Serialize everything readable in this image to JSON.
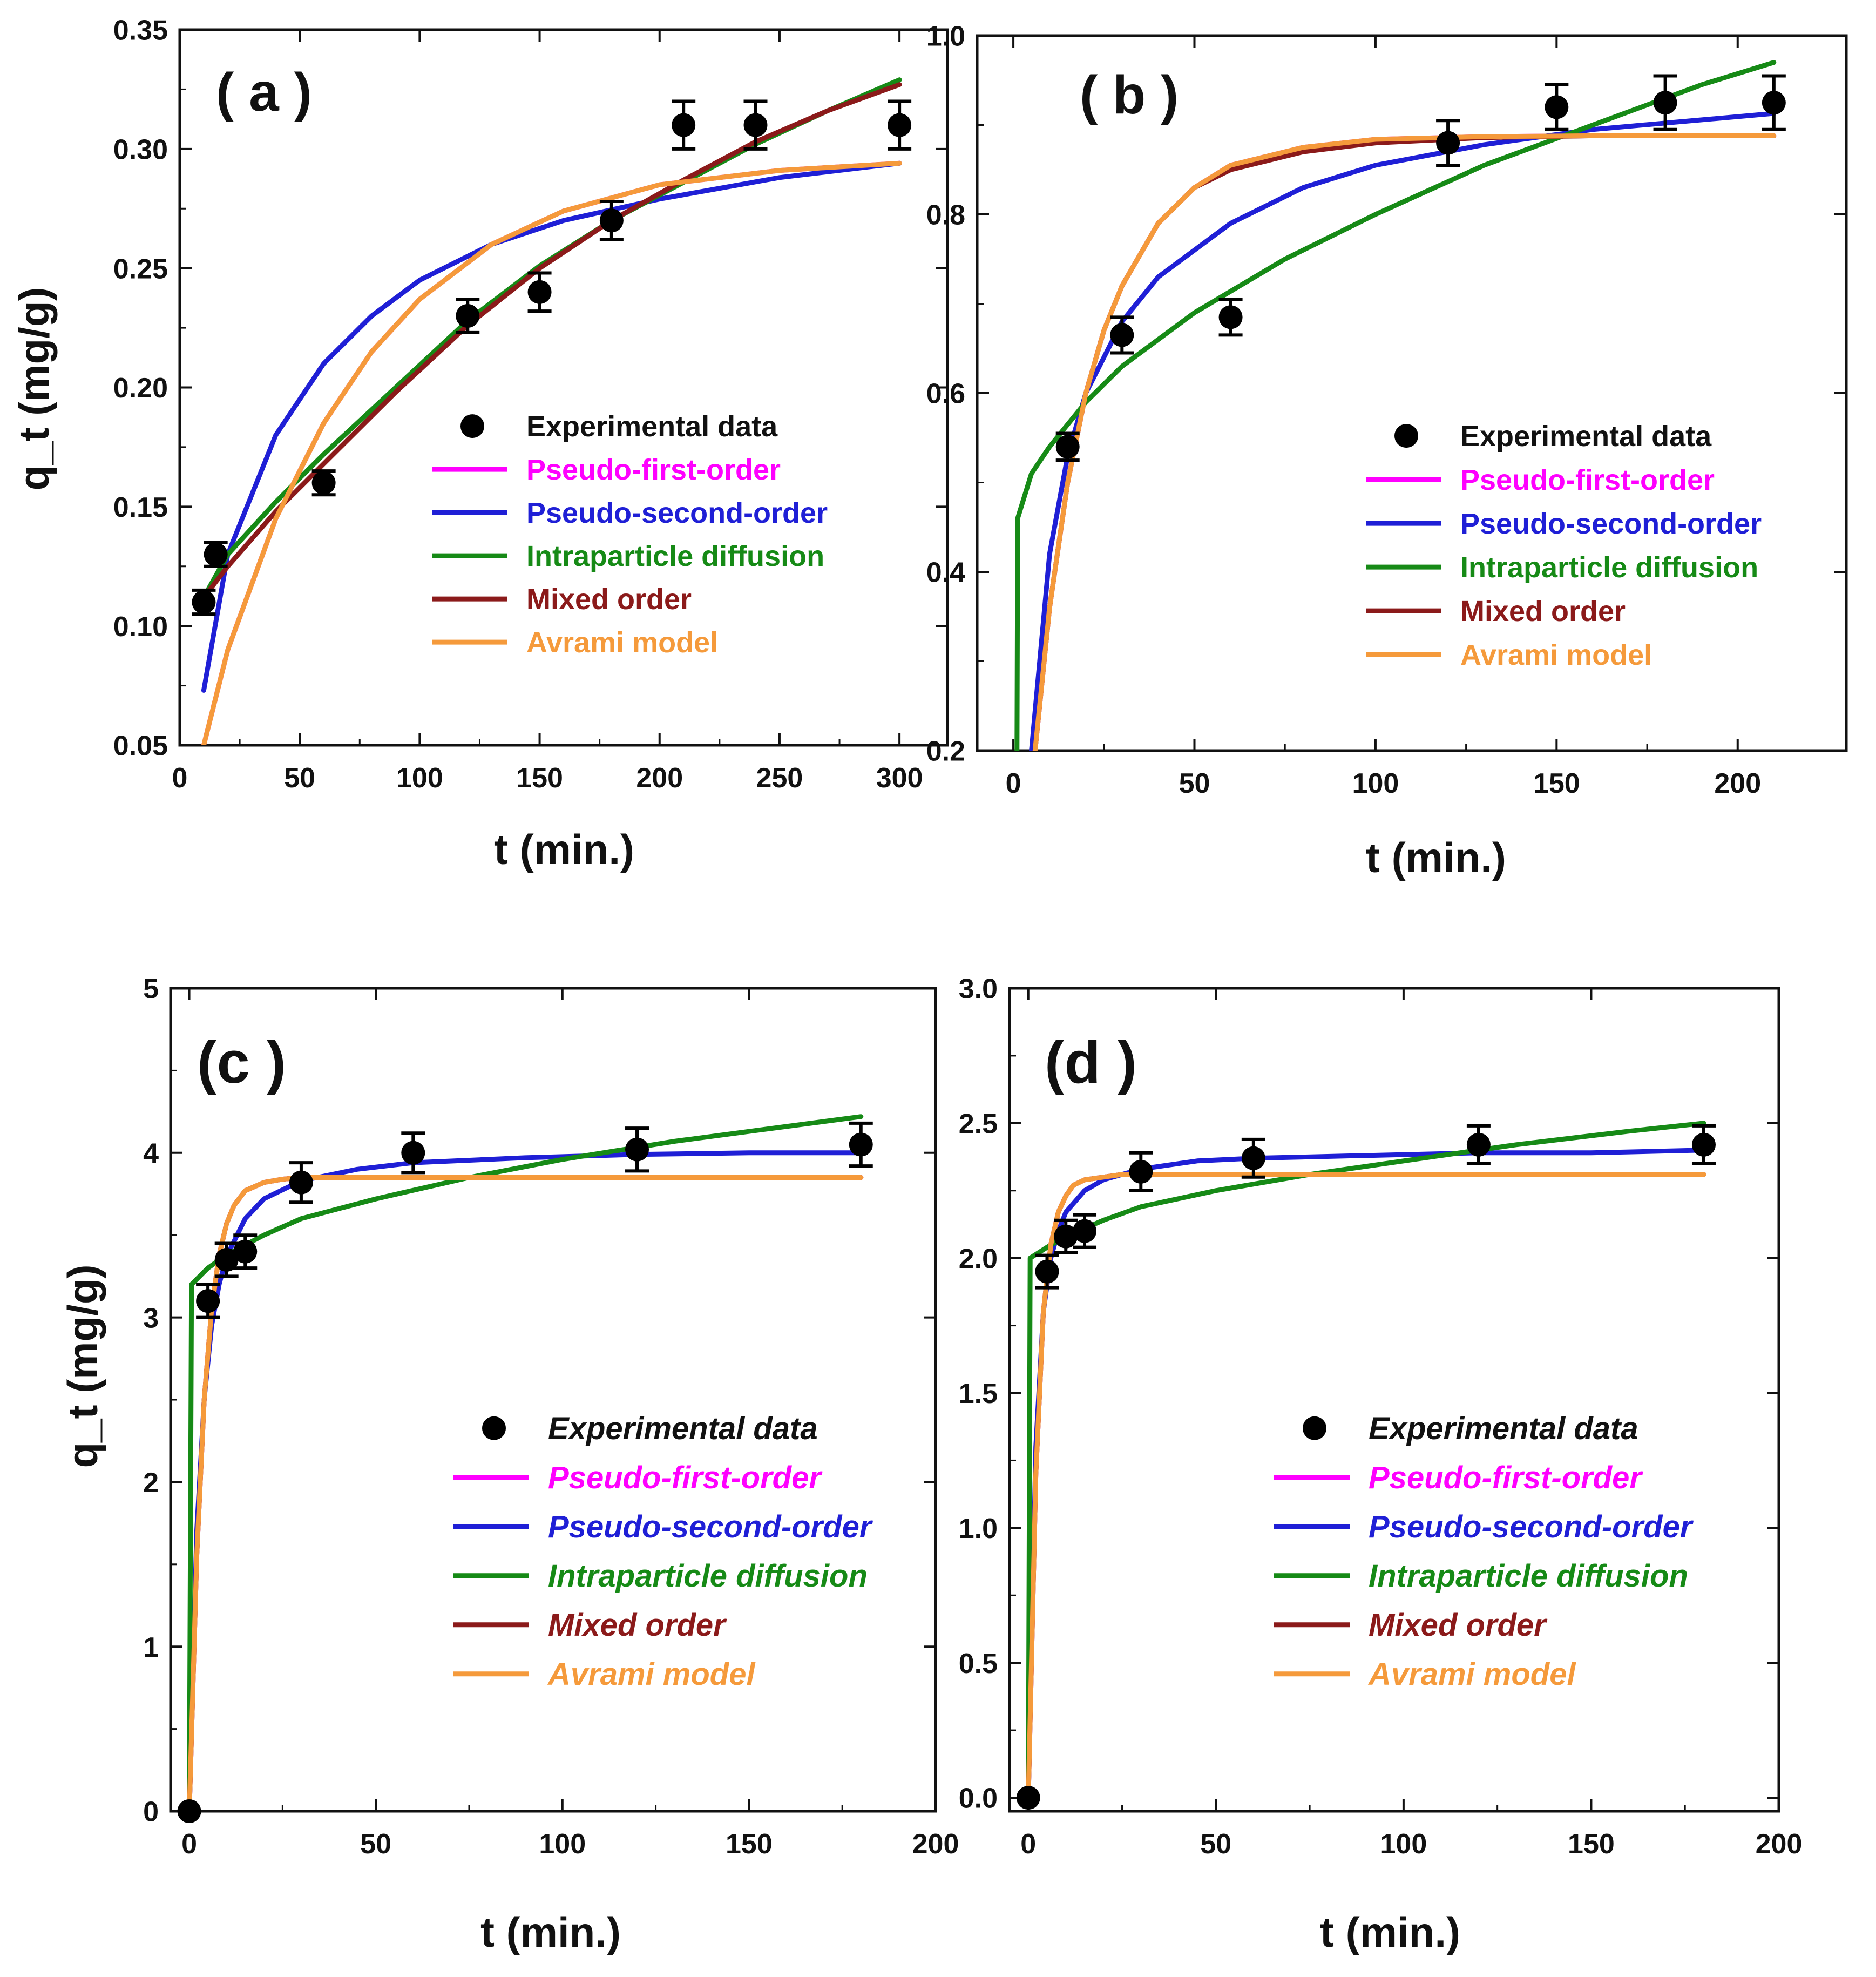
{
  "colors": {
    "experimental": "#000000",
    "pseudo_first_order": "#ff00ff",
    "pseudo_second_order": "#1f1fd6",
    "intraparticle_diffusion": "#168a16",
    "mixed_order": "#8b1a1a",
    "avrami": "#f59a3b",
    "frame": "#111111"
  },
  "chart_data": [
    {
      "panel": "a",
      "type": "line",
      "panel_label": "( a )",
      "xlabel": "t (min.)",
      "ylabel": "q_t (mg/g)",
      "xlim": [
        0,
        320
      ],
      "ylim": [
        0.05,
        0.35
      ],
      "xticks": [
        0,
        50,
        100,
        150,
        200,
        250,
        300
      ],
      "yticks": [
        0.05,
        0.1,
        0.15,
        0.2,
        0.25,
        0.3,
        0.35
      ],
      "ytick_labels": [
        "0.05",
        "0.10",
        "0.15",
        "0.20",
        "0.25",
        "0.30",
        "0.35"
      ],
      "legend_italic": false,
      "legend_labels": [
        "Experimental data",
        "Pseudo-first-order",
        "Pseudo-second-order",
        "Intraparticle diffusion",
        "Mixed order",
        "Avrami model"
      ],
      "experimental": {
        "x": [
          10,
          15,
          60,
          120,
          150,
          180,
          210,
          240,
          300
        ],
        "y": [
          0.11,
          0.13,
          0.16,
          0.23,
          0.24,
          0.27,
          0.31,
          0.31,
          0.31
        ],
        "err": [
          0.005,
          0.005,
          0.005,
          0.007,
          0.008,
          0.008,
          0.01,
          0.01,
          0.01
        ]
      },
      "series": [
        {
          "name": "Pseudo-first-order",
          "color_key": "pseudo_first_order",
          "x": [
            10,
            20,
            40,
            60,
            80,
            100,
            130,
            160,
            200,
            250,
            300
          ],
          "y": [
            0.05,
            0.09,
            0.145,
            0.185,
            0.215,
            0.237,
            0.26,
            0.274,
            0.285,
            0.291,
            0.294
          ]
        },
        {
          "name": "Pseudo-second-order",
          "color_key": "pseudo_second_order",
          "x": [
            10,
            20,
            40,
            60,
            80,
            100,
            130,
            160,
            200,
            250,
            300
          ],
          "y": [
            0.073,
            0.13,
            0.18,
            0.21,
            0.23,
            0.245,
            0.26,
            0.27,
            0.279,
            0.288,
            0.294
          ]
        },
        {
          "name": "Intraparticle diffusion",
          "color_key": "intraparticle_diffusion",
          "x": [
            10,
            20,
            40,
            60,
            90,
            120,
            150,
            180,
            210,
            240,
            270,
            300
          ],
          "y": [
            0.112,
            0.13,
            0.152,
            0.172,
            0.2,
            0.228,
            0.251,
            0.27,
            0.286,
            0.302,
            0.316,
            0.329
          ]
        },
        {
          "name": "Mixed order",
          "color_key": "mixed_order",
          "x": [
            10,
            20,
            40,
            60,
            90,
            120,
            150,
            180,
            210,
            240,
            270,
            300
          ],
          "y": [
            0.112,
            0.125,
            0.148,
            0.168,
            0.198,
            0.226,
            0.25,
            0.27,
            0.287,
            0.303,
            0.316,
            0.327
          ]
        },
        {
          "name": "Avrami model",
          "color_key": "avrami",
          "x": [
            10,
            20,
            40,
            60,
            80,
            100,
            130,
            160,
            200,
            250,
            300
          ],
          "y": [
            0.05,
            0.09,
            0.145,
            0.185,
            0.215,
            0.237,
            0.26,
            0.274,
            0.285,
            0.291,
            0.294
          ]
        }
      ]
    },
    {
      "panel": "b",
      "type": "line",
      "panel_label": "( b )",
      "xlabel": "t (min.)",
      "ylabel": "",
      "xlim": [
        -10,
        230
      ],
      "ylim": [
        0.2,
        1.0
      ],
      "xticks": [
        0,
        50,
        100,
        150,
        200
      ],
      "yticks": [
        0.2,
        0.4,
        0.6,
        0.8,
        1.0
      ],
      "ytick_labels": [
        "0.2",
        "0.4",
        "0.6",
        "0.8",
        "1.0"
      ],
      "legend_italic": false,
      "legend_labels": [
        "Experimental data",
        "Pseudo-first-order",
        "Pseudo-second-order",
        "Intraparticle diffusion",
        " Mixed order",
        "Avrami model"
      ],
      "experimental": {
        "x": [
          15,
          30,
          60,
          120,
          150,
          180,
          210
        ],
        "y": [
          0.54,
          0.665,
          0.685,
          0.88,
          0.92,
          0.925,
          0.925
        ],
        "err": [
          0.015,
          0.02,
          0.02,
          0.025,
          0.025,
          0.03,
          0.03
        ]
      },
      "series": [
        {
          "name": "Pseudo-first-order",
          "color_key": "pseudo_first_order",
          "x": [
            6,
            10,
            15,
            20,
            25,
            30,
            40,
            50,
            60,
            80,
            100,
            130,
            160,
            210
          ],
          "y": [
            0.2,
            0.36,
            0.5,
            0.6,
            0.67,
            0.72,
            0.79,
            0.83,
            0.855,
            0.875,
            0.884,
            0.887,
            0.888,
            0.888
          ]
        },
        {
          "name": "Pseudo-second-order",
          "color_key": "pseudo_second_order",
          "x": [
            5,
            10,
            15,
            20,
            30,
            40,
            60,
            80,
            100,
            130,
            160,
            210
          ],
          "y": [
            0.2,
            0.42,
            0.53,
            0.6,
            0.68,
            0.73,
            0.79,
            0.83,
            0.855,
            0.878,
            0.895,
            0.913
          ]
        },
        {
          "name": "Intraparticle diffusion",
          "color_key": "intraparticle_diffusion",
          "x": [
            1,
            1.2,
            5,
            10,
            20,
            30,
            50,
            75,
            100,
            130,
            160,
            190,
            210
          ],
          "y": [
            0.2,
            0.46,
            0.51,
            0.54,
            0.59,
            0.63,
            0.69,
            0.75,
            0.8,
            0.855,
            0.9,
            0.945,
            0.97
          ]
        },
        {
          "name": " Mixed order",
          "color_key": "mixed_order",
          "x": [
            6,
            10,
            15,
            20,
            25,
            30,
            40,
            50,
            60,
            80,
            100,
            130,
            160,
            210
          ],
          "y": [
            0.2,
            0.36,
            0.5,
            0.6,
            0.67,
            0.72,
            0.79,
            0.83,
            0.85,
            0.87,
            0.88,
            0.886,
            0.888,
            0.888
          ]
        },
        {
          "name": "Avrami model",
          "color_key": "avrami",
          "x": [
            6,
            10,
            15,
            20,
            25,
            30,
            40,
            50,
            60,
            80,
            100,
            130,
            160,
            210
          ],
          "y": [
            0.2,
            0.36,
            0.5,
            0.6,
            0.67,
            0.72,
            0.79,
            0.83,
            0.855,
            0.875,
            0.884,
            0.887,
            0.888,
            0.888
          ]
        }
      ]
    },
    {
      "panel": "c",
      "type": "line",
      "panel_label": "(c )",
      "xlabel": "t (min.)",
      "ylabel": "q_t (mg/g)",
      "xlim": [
        -5,
        200
      ],
      "ylim": [
        0,
        5
      ],
      "xticks": [
        0,
        50,
        100,
        150,
        200
      ],
      "yticks": [
        0,
        1,
        2,
        3,
        4,
        5
      ],
      "ytick_labels": [
        "0",
        "1",
        "2",
        "3",
        "4",
        "5"
      ],
      "legend_italic": true,
      "legend_labels": [
        "Experimental data",
        "Pseudo-first-order",
        "Pseudo-second-order",
        "Intraparticle diffusion",
        "Mixed order",
        "Avrami model"
      ],
      "experimental": {
        "x": [
          0,
          5,
          10,
          15,
          30,
          60,
          120,
          180
        ],
        "y": [
          0,
          3.1,
          3.35,
          3.4,
          3.82,
          4.0,
          4.02,
          4.05
        ],
        "err": [
          0,
          0.1,
          0.1,
          0.1,
          0.12,
          0.12,
          0.13,
          0.13
        ]
      },
      "series": [
        {
          "name": "Pseudo-first-order",
          "color_key": "pseudo_first_order",
          "x": [
            0,
            2,
            4,
            6,
            8,
            10,
            12,
            15,
            20,
            25,
            30,
            50,
            180
          ],
          "y": [
            0,
            1.55,
            2.5,
            3.05,
            3.38,
            3.57,
            3.68,
            3.77,
            3.82,
            3.84,
            3.85,
            3.85,
            3.85
          ]
        },
        {
          "name": "Pseudo-second-order",
          "color_key": "pseudo_second_order",
          "x": [
            0,
            2,
            4,
            6,
            8,
            10,
            15,
            20,
            30,
            45,
            60,
            90,
            120,
            150,
            180
          ],
          "y": [
            0,
            1.7,
            2.5,
            2.95,
            3.2,
            3.37,
            3.6,
            3.72,
            3.83,
            3.9,
            3.94,
            3.97,
            3.99,
            4.0,
            4.0
          ]
        },
        {
          "name": "Intraparticle diffusion",
          "color_key": "intraparticle_diffusion",
          "x": [
            0,
            0.6,
            5,
            10,
            20,
            30,
            50,
            75,
            100,
            130,
            160,
            180
          ],
          "y": [
            0,
            3.2,
            3.3,
            3.38,
            3.5,
            3.6,
            3.72,
            3.85,
            3.96,
            4.07,
            4.16,
            4.22
          ]
        },
        {
          "name": "Mixed order",
          "color_key": "mixed_order",
          "x": [
            0,
            2,
            4,
            6,
            8,
            10,
            12,
            15,
            20,
            25,
            30,
            50,
            180
          ],
          "y": [
            0,
            1.55,
            2.5,
            3.05,
            3.38,
            3.57,
            3.68,
            3.77,
            3.82,
            3.84,
            3.85,
            3.85,
            3.85
          ]
        },
        {
          "name": "Avrami model",
          "color_key": "avrami",
          "x": [
            0,
            2,
            4,
            6,
            8,
            10,
            12,
            15,
            20,
            25,
            30,
            50,
            180
          ],
          "y": [
            0,
            1.55,
            2.5,
            3.05,
            3.38,
            3.57,
            3.68,
            3.77,
            3.82,
            3.84,
            3.85,
            3.85,
            3.85
          ]
        }
      ]
    },
    {
      "panel": "d",
      "type": "line",
      "panel_label": "(d )",
      "xlabel": "t (min.)",
      "ylabel": "",
      "xlim": [
        -5,
        200
      ],
      "ylim": [
        -0.05,
        3.0
      ],
      "xticks": [
        0,
        50,
        100,
        150,
        200
      ],
      "yticks": [
        0.0,
        0.5,
        1.0,
        1.5,
        2.0,
        2.5,
        3.0
      ],
      "ytick_labels": [
        "0.0",
        "0.5",
        "1.0",
        "1.5",
        "2.0",
        "2.5",
        "3.0"
      ],
      "legend_italic": true,
      "legend_labels": [
        "Experimental data",
        "Pseudo-first-order",
        "Pseudo-second-order",
        "Intraparticle diffusion",
        "Mixed order",
        "Avrami model"
      ],
      "experimental": {
        "x": [
          0,
          5,
          10,
          15,
          30,
          60,
          120,
          180
        ],
        "y": [
          0,
          1.95,
          2.08,
          2.1,
          2.32,
          2.37,
          2.42,
          2.42
        ],
        "err": [
          0,
          0.06,
          0.06,
          0.06,
          0.07,
          0.07,
          0.07,
          0.07
        ]
      },
      "series": [
        {
          "name": "Pseudo-first-order",
          "color_key": "pseudo_first_order",
          "x": [
            0,
            2,
            4,
            6,
            8,
            10,
            12,
            15,
            20,
            25,
            30,
            50,
            180
          ],
          "y": [
            0,
            1.2,
            1.8,
            2.05,
            2.17,
            2.23,
            2.27,
            2.29,
            2.3,
            2.31,
            2.31,
            2.31,
            2.31
          ]
        },
        {
          "name": "Pseudo-second-order",
          "color_key": "pseudo_second_order",
          "x": [
            0,
            2,
            4,
            6,
            8,
            10,
            15,
            20,
            30,
            45,
            60,
            90,
            120,
            150,
            180
          ],
          "y": [
            0,
            1.3,
            1.8,
            2.0,
            2.1,
            2.17,
            2.25,
            2.29,
            2.33,
            2.36,
            2.37,
            2.38,
            2.39,
            2.39,
            2.4
          ]
        },
        {
          "name": "Intraparticle diffusion",
          "color_key": "intraparticle_diffusion",
          "x": [
            0,
            0.5,
            5,
            10,
            20,
            30,
            50,
            75,
            100,
            130,
            160,
            180
          ],
          "y": [
            0,
            2.0,
            2.04,
            2.08,
            2.14,
            2.19,
            2.25,
            2.31,
            2.36,
            2.42,
            2.47,
            2.5
          ]
        },
        {
          "name": "Mixed order",
          "color_key": "mixed_order",
          "x": [
            0,
            2,
            4,
            6,
            8,
            10,
            12,
            15,
            20,
            25,
            30,
            50,
            180
          ],
          "y": [
            0,
            1.2,
            1.8,
            2.05,
            2.17,
            2.23,
            2.27,
            2.29,
            2.3,
            2.31,
            2.31,
            2.31,
            2.31
          ]
        },
        {
          "name": "Avrami model",
          "color_key": "avrami",
          "x": [
            0,
            2,
            4,
            6,
            8,
            10,
            12,
            15,
            20,
            25,
            30,
            50,
            180
          ],
          "y": [
            0,
            1.2,
            1.8,
            2.05,
            2.17,
            2.23,
            2.27,
            2.29,
            2.3,
            2.31,
            2.31,
            2.31,
            2.31
          ]
        }
      ]
    }
  ]
}
